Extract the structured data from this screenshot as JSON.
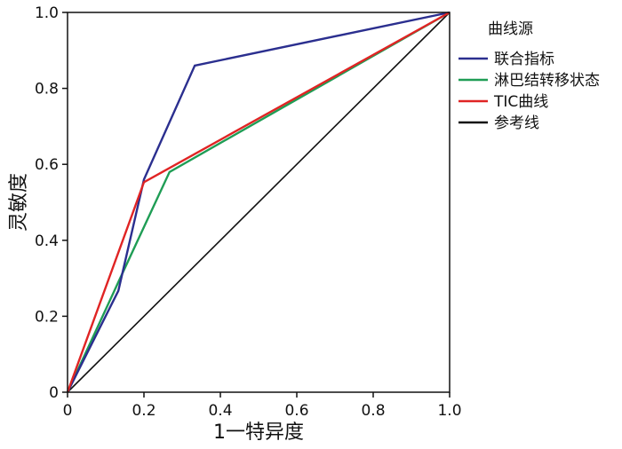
{
  "chart_data": {
    "type": "line",
    "xlabel": "1一特异度",
    "ylabel": "灵敏度",
    "xlim": [
      0,
      1
    ],
    "ylim": [
      0,
      1
    ],
    "xticks": [
      "0",
      "0.2",
      "0.4",
      "0.6",
      "0.8",
      "1.0"
    ],
    "yticks": [
      "0",
      "0.2",
      "0.4",
      "0.6",
      "0.8",
      "1.0"
    ],
    "grid": false,
    "legend": {
      "title": "曲线源",
      "position": "right"
    },
    "series": [
      {
        "name": "联合指标",
        "color": "#2b2f8f",
        "x": [
          0,
          0.133,
          0.2,
          0.333,
          1.0
        ],
        "y": [
          0,
          0.267,
          0.56,
          0.86,
          1.0
        ]
      },
      {
        "name": "淋巴结转移状态",
        "color": "#1f9d55",
        "x": [
          0,
          0.133,
          0.267,
          1.0
        ],
        "y": [
          0,
          0.29,
          0.58,
          1.0
        ]
      },
      {
        "name": "TIC曲线",
        "color": "#e02424",
        "x": [
          0,
          0.2,
          1.0
        ],
        "y": [
          0,
          0.553,
          1.0
        ]
      },
      {
        "name": "参考线",
        "color": "#111111",
        "x": [
          0,
          1.0
        ],
        "y": [
          0,
          1.0
        ]
      }
    ]
  }
}
